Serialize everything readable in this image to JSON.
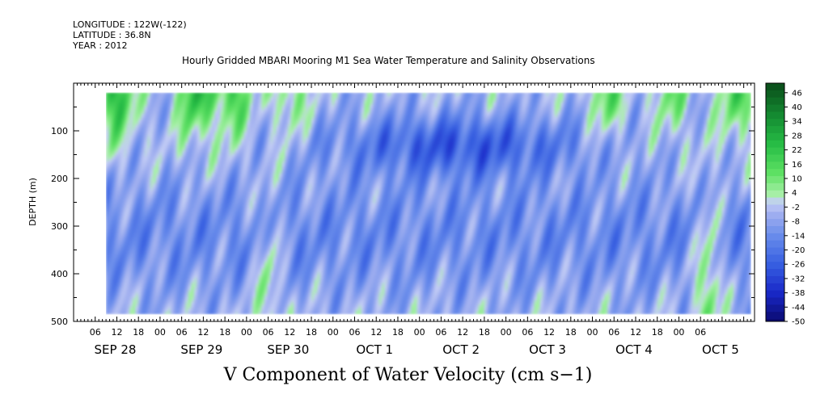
{
  "header": {
    "longitude": "LONGITUDE : 122W(-122)",
    "latitude": "LATITUDE : 36.8N",
    "year": "YEAR : 2012"
  },
  "chart_data": {
    "type": "heatmap",
    "title": "Hourly Gridded MBARI Mooring M1 Sea Water Temperature and Salinity Observations",
    "variable_label": "V Component of Water Velocity (cm s−1)",
    "ylabel": "DEPTH (m)",
    "ylim": [
      500,
      0
    ],
    "y_ticks": [
      100,
      200,
      300,
      400,
      500
    ],
    "y_tick_labels": [
      "100",
      "200",
      "300",
      "400",
      "500"
    ],
    "x_range_hours": [
      0,
      189
    ],
    "x_hour_ticks": [
      "06",
      "12",
      "18",
      "00",
      "06",
      "12",
      "18",
      "00",
      "06",
      "12",
      "18",
      "00",
      "06",
      "12",
      "18",
      "00",
      "06",
      "12",
      "18",
      "00",
      "06",
      "12",
      "18",
      "00",
      "06",
      "12",
      "18",
      "00",
      "06"
    ],
    "x_dates": [
      "SEP 28",
      "SEP 29",
      "SEP 30",
      "OCT  1",
      "OCT  2",
      "OCT  3",
      "OCT  4",
      "OCT  5"
    ],
    "data_start_hour": 9,
    "data_depth_range": [
      20,
      485
    ],
    "colorbar": {
      "labels": [
        "46",
        "40",
        "34",
        "28",
        "22",
        "16",
        "10",
        "4",
        "-2",
        "-8",
        "-14",
        "-20",
        "-26",
        "-32",
        "-38",
        "-44",
        "-50"
      ],
      "min": -50,
      "max": 50,
      "step": 3
    },
    "field_description_values": {
      "surface_positive_bands_hours": [
        12,
        34,
        44,
        60,
        148,
        166,
        184
      ],
      "negative_core_depth_m": 130,
      "negative_core_hours": [
        84,
        130
      ],
      "deep_positive_band_hours": [
        54,
        176
      ]
    }
  }
}
